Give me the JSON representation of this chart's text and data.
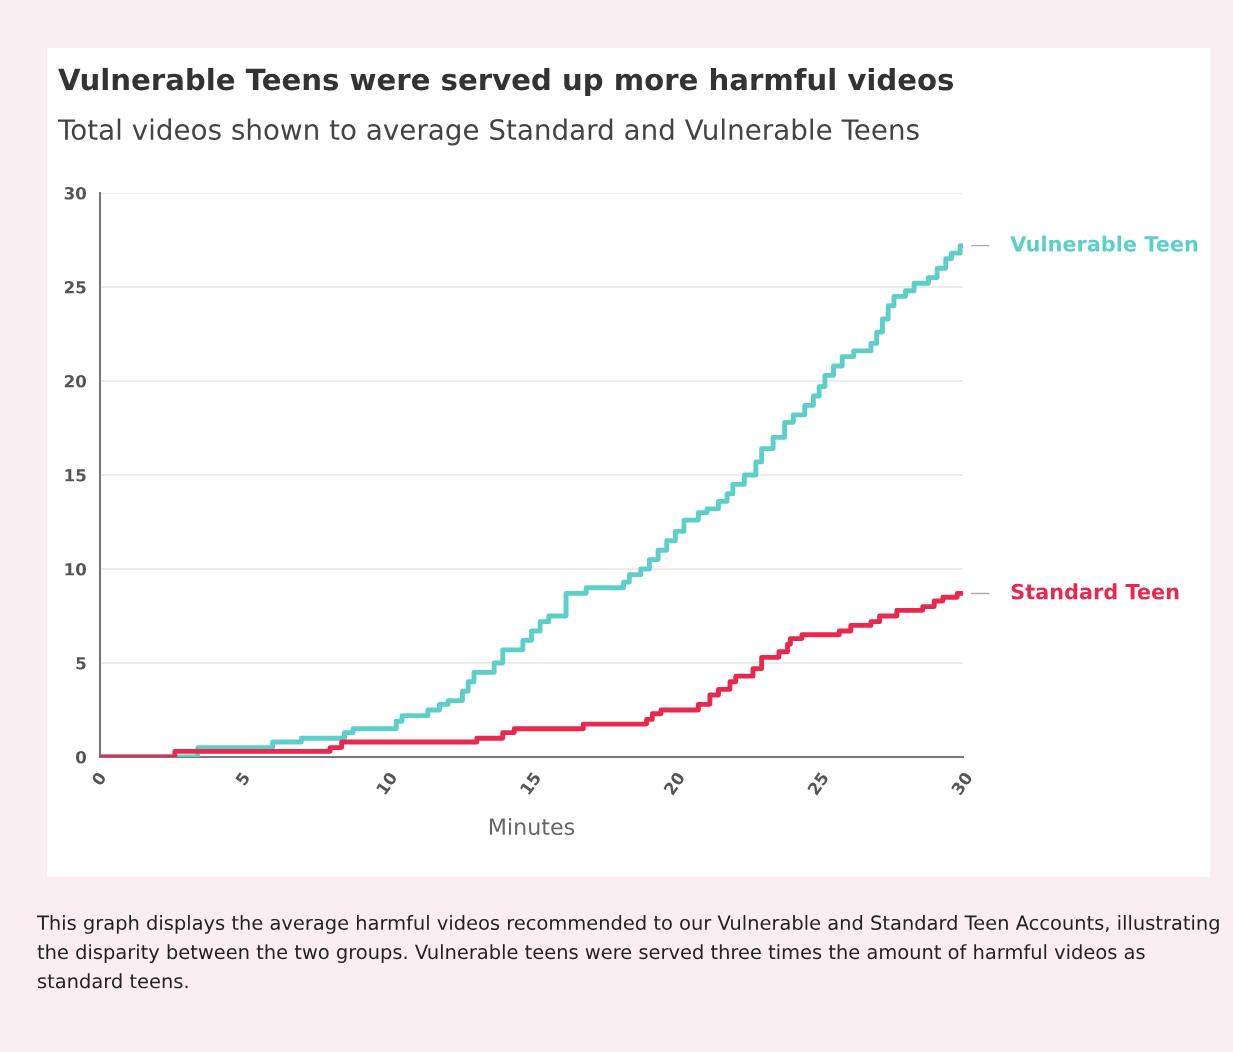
{
  "chart_data": {
    "type": "step",
    "title": "Vulnerable Teens were served up more harmful videos",
    "subtitle": "Total videos shown to average Standard and Vulnerable Teens",
    "xlabel": "Minutes",
    "annotations": [
      "This graph displays the average harmful videos recommended to our Vulnerable and Standard Teen Accounts, illustrating the disparity between the two groups. Vulnerable teens were served three times the amount of harmful videos as standard teens."
    ],
    "xlim": [
      0,
      30
    ],
    "xticks": [
      0,
      5,
      10,
      15,
      20,
      25,
      30
    ],
    "ylim": [
      0,
      30
    ],
    "yticks": [
      0,
      5,
      10,
      15,
      20,
      25,
      30
    ],
    "grid": "y",
    "legend": false,
    "series": [
      {
        "name": "Vulnerable Teen",
        "color": "#5ccfc8",
        "x": [
          0,
          3.4,
          6,
          7,
          8.5,
          8.8,
          10.3,
          10.5,
          11.4,
          11.8,
          12.1,
          12.6,
          12.8,
          13,
          13.7,
          14,
          14.7,
          15,
          15.3,
          15.6,
          16.2,
          16.9,
          18.2,
          18.4,
          18.8,
          19.1,
          19.4,
          19.7,
          20,
          20.3,
          20.8,
          21.1,
          21.5,
          21.8,
          22,
          22.4,
          22.8,
          23,
          23.4,
          23.8,
          24.1,
          24.5,
          24.8,
          25,
          25.2,
          25.5,
          25.8,
          26.2,
          26.8,
          27,
          27.2,
          27.4,
          27.6,
          28,
          28.3,
          28.8,
          29.1,
          29.4,
          29.6,
          29.9,
          30
        ],
        "values": [
          0,
          0.5,
          0.8,
          1.0,
          1.3,
          1.5,
          1.9,
          2.2,
          2.5,
          2.8,
          3.0,
          3.5,
          4.0,
          4.5,
          5.0,
          5.7,
          6.2,
          6.7,
          7.2,
          7.5,
          8.7,
          9.0,
          9.3,
          9.7,
          10.0,
          10.5,
          11.0,
          11.5,
          12.0,
          12.6,
          13.0,
          13.2,
          13.6,
          14.0,
          14.5,
          15.0,
          15.7,
          16.4,
          17.0,
          17.8,
          18.2,
          18.7,
          19.2,
          19.7,
          20.3,
          20.8,
          21.3,
          21.6,
          22.0,
          22.6,
          23.3,
          24.0,
          24.5,
          24.8,
          25.2,
          25.5,
          26.0,
          26.5,
          26.8,
          27.2,
          27.2
        ]
      },
      {
        "name": "Standard Teen",
        "color": "#e8294f",
        "x": [
          0,
          2.6,
          8,
          8.4,
          13.1,
          14,
          14.4,
          16.8,
          19,
          19.2,
          19.5,
          20.8,
          21.2,
          21.5,
          21.9,
          22.1,
          22.7,
          23,
          23.6,
          23.9,
          24,
          24.4,
          25.7,
          26.1,
          26.8,
          27.1,
          27.7,
          28.6,
          29,
          29.3,
          29.8,
          30
        ],
        "values": [
          0,
          0.3,
          0.5,
          0.8,
          1.0,
          1.3,
          1.5,
          1.75,
          2.0,
          2.3,
          2.5,
          2.8,
          3.3,
          3.6,
          4.0,
          4.3,
          4.7,
          5.3,
          5.6,
          6.0,
          6.3,
          6.5,
          6.7,
          7.0,
          7.2,
          7.5,
          7.8,
          8.0,
          8.3,
          8.5,
          8.7,
          8.7
        ]
      }
    ]
  }
}
